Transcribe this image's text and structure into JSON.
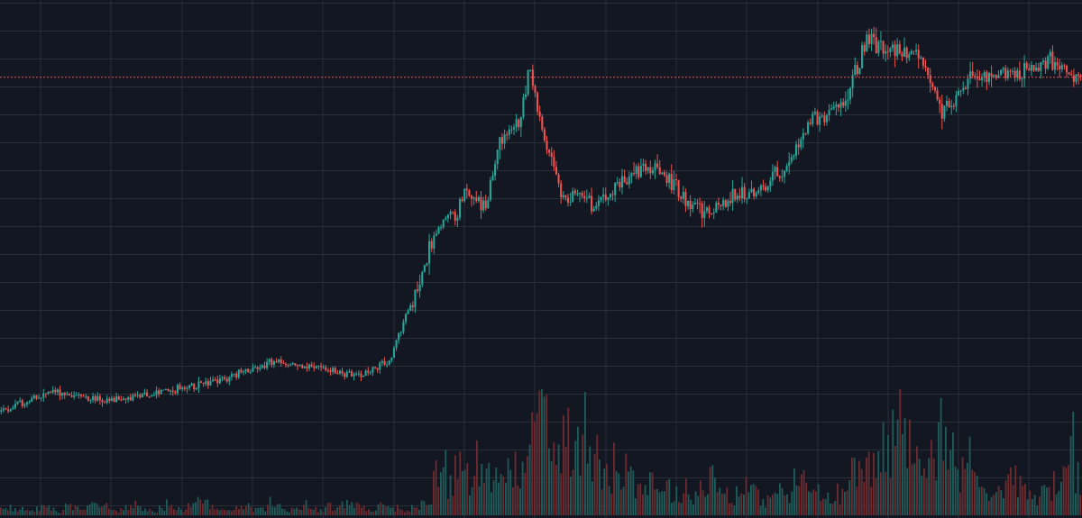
{
  "chart_data": {
    "type": "candlestick",
    "theme": {
      "background": "#131722",
      "grid": "#2a2e39",
      "up_color": "#26a69a",
      "down_color": "#ef5350",
      "volume_up_color": "#1e5a57",
      "volume_down_color": "#6b2a2e",
      "last_price_line_color": "#ef5350"
    },
    "grid": true,
    "axes_visible": false,
    "legend": "none",
    "price_range": [
      0,
      100
    ],
    "last_price": 85.1,
    "price_path": {
      "x": [
        0,
        5,
        10,
        15,
        20,
        25,
        30,
        33,
        36,
        40,
        41,
        42,
        43,
        45,
        46,
        48,
        49,
        50,
        51,
        52,
        53,
        55,
        57,
        59,
        60,
        62,
        63,
        65,
        68,
        70,
        73,
        75,
        78,
        80,
        82,
        85,
        87,
        90,
        94,
        96,
        97,
        99,
        100
      ],
      "y": [
        12.0,
        16.5,
        14.2,
        16.3,
        18.5,
        22.8,
        21.5,
        19.8,
        23.0,
        49.0,
        54.5,
        55.0,
        60.0,
        57.5,
        70.0,
        75.5,
        88.5,
        73.5,
        66.0,
        58.7,
        60.2,
        57.0,
        61.7,
        64.5,
        65.5,
        62.7,
        59.0,
        55.5,
        59.0,
        59.5,
        66.5,
        76.0,
        78.0,
        93.0,
        91.5,
        89.5,
        77.5,
        85.5,
        85.5,
        87.5,
        89.5,
        86.0,
        85.1
      ]
    },
    "volume": {
      "y": [
        3,
        4,
        3,
        5,
        2,
        4,
        6,
        3,
        2,
        5,
        4,
        3,
        6,
        8,
        5,
        4,
        3,
        5,
        7,
        4,
        3,
        2,
        5,
        6,
        4,
        3,
        5,
        8,
        6,
        4,
        3,
        5,
        4,
        6,
        5,
        3,
        4,
        7,
        5,
        4,
        3,
        5,
        6,
        4,
        3,
        5,
        4,
        6,
        7,
        5,
        4,
        3,
        5,
        6,
        4,
        5,
        3,
        4,
        6,
        5,
        22,
        30,
        18,
        25,
        20,
        15,
        28,
        35,
        20,
        18,
        25,
        30,
        22,
        40,
        55,
        70,
        45,
        38,
        50,
        42,
        35,
        48,
        30,
        25,
        20,
        35,
        28,
        22,
        18,
        15,
        20,
        18,
        15,
        12,
        10,
        14,
        12,
        16,
        22,
        18,
        12,
        10,
        14,
        16,
        12,
        10,
        8,
        12,
        15,
        10,
        18,
        20,
        15,
        12,
        10,
        8,
        12,
        14,
        22,
        25,
        30,
        28,
        35,
        40,
        55,
        45,
        38,
        42,
        35,
        30,
        48,
        40,
        32,
        25,
        30,
        22,
        18,
        15,
        12,
        18,
        20,
        15,
        12,
        10,
        14,
        12,
        18,
        22,
        45,
        20
      ]
    }
  }
}
